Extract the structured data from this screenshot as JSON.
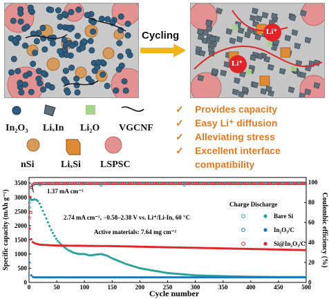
{
  "figure": {
    "arrow_label": "Cycling",
    "ion_label_1": "Li⁺",
    "ion_label_2": "Li⁺",
    "legend_items": [
      {
        "label": "In₂O₃",
        "icon": "blue-sphere-icon"
      },
      {
        "label": "LiₓIn",
        "icon": "gray-crystal-icon"
      },
      {
        "label": "Li₂O",
        "icon": "green-square-icon"
      },
      {
        "label": "VGCNF",
        "icon": "fiber-curve-icon"
      },
      {
        "label": "nSi",
        "icon": "orange-sphere-icon"
      },
      {
        "label": "LiₓSi",
        "icon": "orange-cube-icon"
      },
      {
        "label": "LSPSC",
        "icon": "pink-sphere-icon"
      }
    ],
    "benefits": [
      "Provides capacity",
      "Easy Li⁺ diffusion",
      "Alleviating stress",
      "Excellent interface",
      "compatibility"
    ],
    "check_mark": "✓",
    "colors": {
      "accent_orange": "#e07a25",
      "bare_si": "#2aa198",
      "in2o3_c": "#1f78b4",
      "si_in2o3_c": "#e0242a"
    }
  },
  "chart_data": {
    "type": "scatter",
    "xlabel": "Cycle number",
    "ylabel_left": "Specific capacity (mAh g⁻¹)",
    "ylabel_right": "Coulombic efficiency (%)",
    "xlim": [
      0,
      500
    ],
    "ylim_left": [
      0,
      3700
    ],
    "ylim_right": [
      0,
      105
    ],
    "x_ticks": [
      "0",
      "50",
      "100",
      "150",
      "200",
      "250",
      "300",
      "350",
      "400",
      "450",
      "500"
    ],
    "y_ticks_left": [
      "0",
      "500",
      "1000",
      "1500",
      "2000",
      "2500",
      "3000",
      "3500"
    ],
    "y_ticks_right": [
      "0",
      "20",
      "40",
      "60",
      "80",
      "100"
    ],
    "annotations": {
      "current_early": "1.37 mA cm⁻²",
      "conditions": "2.74 mA cm⁻², −0.58–2.38 V vs. Li⁺/Li-In, 60 °C",
      "loading": "Active materials: 7.64 mg cm⁻²"
    },
    "legend_header": "Charge Discharge",
    "series": [
      {
        "name": "Bare Si",
        "color": "#2aa198",
        "capacity": [
          [
            1,
            2950
          ],
          [
            5,
            2900
          ],
          [
            10,
            2930
          ],
          [
            15,
            2900
          ],
          [
            20,
            2750
          ],
          [
            30,
            2300
          ],
          [
            40,
            1850
          ],
          [
            50,
            1500
          ],
          [
            60,
            1300
          ],
          [
            70,
            1150
          ],
          [
            80,
            1050
          ],
          [
            90,
            1000
          ],
          [
            100,
            1000
          ],
          [
            110,
            950
          ],
          [
            120,
            980
          ],
          [
            130,
            1000
          ],
          [
            140,
            950
          ],
          [
            150,
            850
          ],
          [
            175,
            650
          ],
          [
            200,
            500
          ],
          [
            250,
            330
          ],
          [
            300,
            250
          ],
          [
            350,
            220
          ],
          [
            400,
            200
          ],
          [
            450,
            190
          ],
          [
            500,
            190
          ]
        ],
        "ce": [
          [
            1,
            80
          ],
          [
            3,
            95
          ],
          [
            5,
            98
          ],
          [
            10,
            99.2
          ],
          [
            50,
            99.4
          ],
          [
            100,
            99.4
          ],
          [
            200,
            99.5
          ],
          [
            300,
            99.6
          ],
          [
            400,
            99.6
          ],
          [
            500,
            99.6
          ]
        ]
      },
      {
        "name": "In₂O₃/C",
        "color": "#1f78b4",
        "capacity": [
          [
            1,
            700
          ],
          [
            3,
            300
          ],
          [
            5,
            200
          ],
          [
            10,
            180
          ],
          [
            50,
            180
          ],
          [
            100,
            180
          ],
          [
            200,
            180
          ],
          [
            300,
            180
          ],
          [
            400,
            180
          ],
          [
            500,
            180
          ]
        ],
        "ce": [
          [
            1,
            75
          ],
          [
            3,
            92
          ],
          [
            5,
            97
          ],
          [
            10,
            98.6
          ],
          [
            100,
            98.8
          ],
          [
            200,
            98.8
          ],
          [
            300,
            98.8
          ],
          [
            400,
            98.8
          ],
          [
            500,
            98.8
          ]
        ]
      },
      {
        "name": "Si@In₂O₃/C",
        "color": "#e0242a",
        "capacity": [
          [
            1,
            1900
          ],
          [
            3,
            1600
          ],
          [
            5,
            1450
          ],
          [
            10,
            1380
          ],
          [
            20,
            1330
          ],
          [
            50,
            1300
          ],
          [
            100,
            1290
          ],
          [
            150,
            1280
          ],
          [
            200,
            1260
          ],
          [
            250,
            1240
          ],
          [
            300,
            1220
          ],
          [
            350,
            1200
          ],
          [
            400,
            1180
          ],
          [
            450,
            1160
          ],
          [
            500,
            1140
          ]
        ],
        "ce": [
          [
            1,
            65
          ],
          [
            3,
            93
          ],
          [
            5,
            97
          ],
          [
            10,
            99.0
          ],
          [
            50,
            99.2
          ],
          [
            100,
            99.2
          ],
          [
            200,
            99.3
          ],
          [
            300,
            99.3
          ],
          [
            400,
            99.3
          ],
          [
            500,
            99.3
          ]
        ]
      }
    ],
    "ce_outliers": [
      {
        "series": "Bare Si",
        "x": 20,
        "y": 97.8
      },
      {
        "series": "Bare Si",
        "x": 130,
        "y": 97.5
      },
      {
        "series": "Bare Si",
        "x": 280,
        "y": 97.6
      },
      {
        "series": "Si@In₂O₃/C",
        "x": 2,
        "y": 85
      },
      {
        "series": "Si@In₂O₃/C",
        "x": 3,
        "y": 70
      }
    ]
  }
}
